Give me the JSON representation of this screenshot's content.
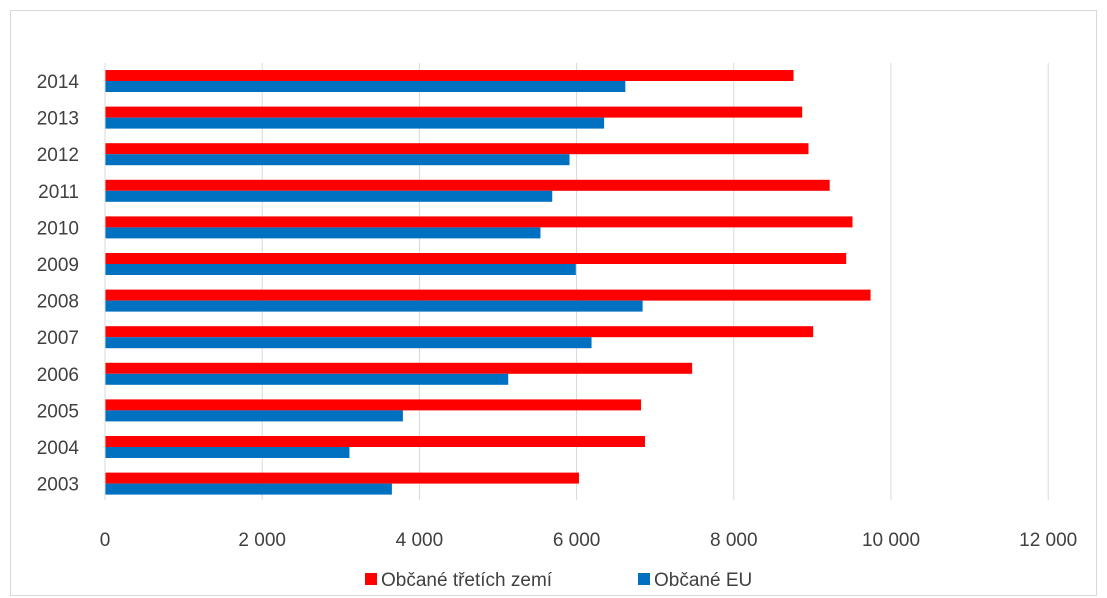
{
  "chart_data": {
    "type": "bar",
    "orientation": "horizontal",
    "title": "",
    "xlabel": "",
    "ylabel": "",
    "categories": [
      "2014",
      "2013",
      "2012",
      "2011",
      "2010",
      "2009",
      "2008",
      "2007",
      "2006",
      "2005",
      "2004",
      "2003"
    ],
    "series": [
      {
        "name": "Občané třetích zemí",
        "color": "#ff0000",
        "values": [
          8760,
          8870,
          8950,
          9220,
          9510,
          9430,
          9740,
          9010,
          7470,
          6820,
          6870,
          6030
        ]
      },
      {
        "name": "Občané EU",
        "color": "#0070c0",
        "values": [
          6620,
          6350,
          5910,
          5690,
          5540,
          5990,
          6840,
          6190,
          5130,
          3790,
          3110,
          3650
        ]
      }
    ],
    "xlim": [
      0,
      12000
    ],
    "x_ticks": [
      0,
      2000,
      4000,
      6000,
      8000,
      10000,
      12000
    ],
    "x_tick_labels": [
      "0",
      "2 000",
      "4 000",
      "6 000",
      "8 000",
      "10 000",
      "12 000"
    ],
    "grid": "vertical",
    "legend_position": "bottom"
  }
}
